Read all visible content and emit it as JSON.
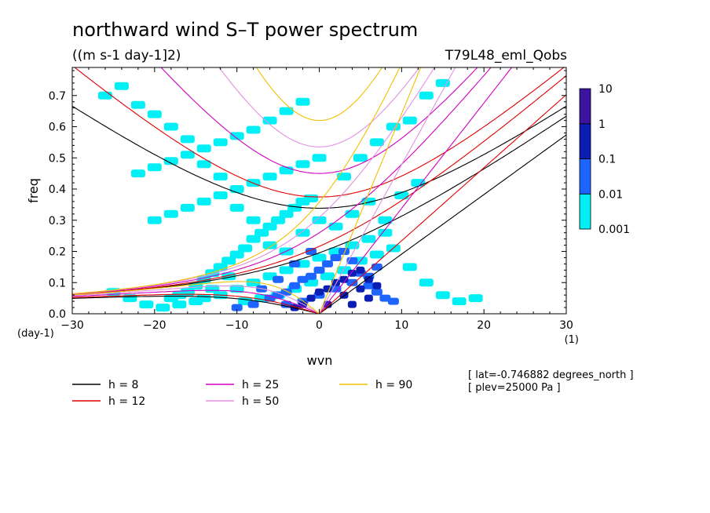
{
  "chart_data": {
    "type": "heatmap",
    "title": "northward wind S–T power spectrum",
    "subtitle": "((m s-1 day-1]2)",
    "run_label": "T79L48_eml_Qobs",
    "xlabel": "wvn",
    "xunit": "(1)",
    "ylabel": "freq",
    "yunit": "(day-1)",
    "xlim": [
      -30,
      30
    ],
    "ylim": [
      0,
      0.79
    ],
    "xticks": [
      "−30",
      "−20",
      "−10",
      "0",
      "10",
      "20",
      "30"
    ],
    "yticks": [
      "0.0",
      "0.1",
      "0.2",
      "0.3",
      "0.4",
      "0.5",
      "0.6",
      "0.7"
    ],
    "colorbar": {
      "scale": "log",
      "levels": [
        "0.001",
        "0.01",
        "0.1",
        "1",
        "10"
      ],
      "colors": [
        "#00f0f5",
        "#1e64ff",
        "#0a1eb4",
        "#3c14a0"
      ]
    },
    "contours": [
      {
        "range": [
          0.001,
          0.01
        ],
        "cells": [
          [
            -18,
            0.05
          ],
          [
            -17,
            0.06
          ],
          [
            -16,
            0.07
          ],
          [
            -15,
            0.09
          ],
          [
            -14,
            0.11
          ],
          [
            -13,
            0.13
          ],
          [
            -12,
            0.15
          ],
          [
            -11,
            0.17
          ],
          [
            -10,
            0.19
          ],
          [
            -9,
            0.21
          ],
          [
            -8,
            0.24
          ],
          [
            -7,
            0.26
          ],
          [
            -6,
            0.28
          ],
          [
            -5,
            0.3
          ],
          [
            -4,
            0.32
          ],
          [
            -3,
            0.34
          ],
          [
            -2,
            0.36
          ],
          [
            -1,
            0.37
          ],
          [
            -14,
            0.05
          ],
          [
            -12,
            0.06
          ],
          [
            -10,
            0.08
          ],
          [
            -8,
            0.1
          ],
          [
            -6,
            0.12
          ],
          [
            -4,
            0.14
          ],
          [
            -2,
            0.16
          ],
          [
            0,
            0.18
          ],
          [
            2,
            0.2
          ],
          [
            4,
            0.22
          ],
          [
            6,
            0.24
          ],
          [
            8,
            0.26
          ],
          [
            -9,
            0.04
          ],
          [
            -7,
            0.05
          ],
          [
            -5,
            0.06
          ],
          [
            -3,
            0.08
          ],
          [
            -1,
            0.1
          ],
          [
            1,
            0.12
          ],
          [
            3,
            0.14
          ],
          [
            5,
            0.17
          ],
          [
            7,
            0.19
          ],
          [
            9,
            0.21
          ],
          [
            11,
            0.15
          ],
          [
            13,
            0.1
          ],
          [
            15,
            0.06
          ],
          [
            17,
            0.04
          ],
          [
            19,
            0.05
          ],
          [
            -20,
            0.3
          ],
          [
            -18,
            0.32
          ],
          [
            -16,
            0.34
          ],
          [
            -14,
            0.36
          ],
          [
            -12,
            0.38
          ],
          [
            -10,
            0.4
          ],
          [
            -8,
            0.42
          ],
          [
            -6,
            0.44
          ],
          [
            -4,
            0.46
          ],
          [
            -2,
            0.48
          ],
          [
            0,
            0.5
          ],
          [
            -22,
            0.45
          ],
          [
            -20,
            0.47
          ],
          [
            -18,
            0.49
          ],
          [
            -16,
            0.51
          ],
          [
            -14,
            0.53
          ],
          [
            -12,
            0.55
          ],
          [
            -10,
            0.57
          ],
          [
            -8,
            0.59
          ],
          [
            -6,
            0.62
          ],
          [
            -4,
            0.65
          ],
          [
            -2,
            0.68
          ],
          [
            -26,
            0.7
          ],
          [
            -24,
            0.73
          ],
          [
            -22,
            0.67
          ],
          [
            -20,
            0.64
          ],
          [
            -18,
            0.6
          ],
          [
            -16,
            0.56
          ],
          [
            -14,
            0.48
          ],
          [
            -12,
            0.44
          ],
          [
            -10,
            0.34
          ],
          [
            -8,
            0.3
          ],
          [
            -6,
            0.22
          ],
          [
            -4,
            0.2
          ],
          [
            -2,
            0.26
          ],
          [
            0,
            0.3
          ],
          [
            2,
            0.28
          ],
          [
            4,
            0.32
          ],
          [
            6,
            0.36
          ],
          [
            8,
            0.3
          ],
          [
            10,
            0.38
          ],
          [
            12,
            0.42
          ],
          [
            3,
            0.44
          ],
          [
            5,
            0.5
          ],
          [
            7,
            0.55
          ],
          [
            9,
            0.6
          ],
          [
            11,
            0.62
          ],
          [
            13,
            0.7
          ],
          [
            15,
            0.74
          ],
          [
            -11,
            0.12
          ],
          [
            -13,
            0.08
          ],
          [
            -15,
            0.04
          ],
          [
            -17,
            0.03
          ],
          [
            -19,
            0.02
          ],
          [
            -21,
            0.03
          ],
          [
            -23,
            0.05
          ],
          [
            -25,
            0.07
          ]
        ]
      },
      {
        "range": [
          0.01,
          0.1
        ],
        "cells": [
          [
            -6,
            0.05
          ],
          [
            -5,
            0.06
          ],
          [
            -4,
            0.07
          ],
          [
            -3,
            0.09
          ],
          [
            -2,
            0.11
          ],
          [
            -1,
            0.12
          ],
          [
            0,
            0.14
          ],
          [
            1,
            0.16
          ],
          [
            2,
            0.18
          ],
          [
            3,
            0.2
          ],
          [
            4,
            0.17
          ],
          [
            5,
            0.13
          ],
          [
            6,
            0.09
          ],
          [
            7,
            0.07
          ],
          [
            8,
            0.05
          ],
          [
            9,
            0.04
          ],
          [
            -4,
            0.03
          ],
          [
            -2,
            0.04
          ],
          [
            0,
            0.06
          ],
          [
            2,
            0.08
          ],
          [
            4,
            0.1
          ],
          [
            6,
            0.12
          ],
          [
            7,
            0.15
          ],
          [
            -1,
            0.2
          ],
          [
            -3,
            0.16
          ],
          [
            -5,
            0.11
          ],
          [
            -7,
            0.08
          ],
          [
            -8,
            0.03
          ],
          [
            -10,
            0.02
          ]
        ]
      },
      {
        "range": [
          0.1,
          1
        ],
        "cells": [
          [
            -3,
            0.02
          ],
          [
            -2,
            0.03
          ],
          [
            -1,
            0.05
          ],
          [
            0,
            0.07
          ],
          [
            1,
            0.08
          ],
          [
            2,
            0.1
          ],
          [
            3,
            0.11
          ],
          [
            4,
            0.13
          ],
          [
            5,
            0.14
          ],
          [
            6,
            0.11
          ],
          [
            5,
            0.08
          ],
          [
            3,
            0.06
          ],
          [
            1,
            0.03
          ],
          [
            4,
            0.03
          ],
          [
            6,
            0.05
          ],
          [
            7,
            0.09
          ]
        ]
      }
    ],
    "series": [
      {
        "name": "h = 8",
        "color": "#000000"
      },
      {
        "name": "h = 12",
        "color": "#e00000"
      },
      {
        "name": "h = 25",
        "color": "#d000c0"
      },
      {
        "name": "h = 50",
        "color": "#e290e2"
      },
      {
        "name": "h = 90",
        "color": "#f0c000"
      }
    ],
    "annotations": [
      "[ lat=-0.746882 degrees_north ]",
      "[ plev=25000 Pa ]"
    ]
  }
}
